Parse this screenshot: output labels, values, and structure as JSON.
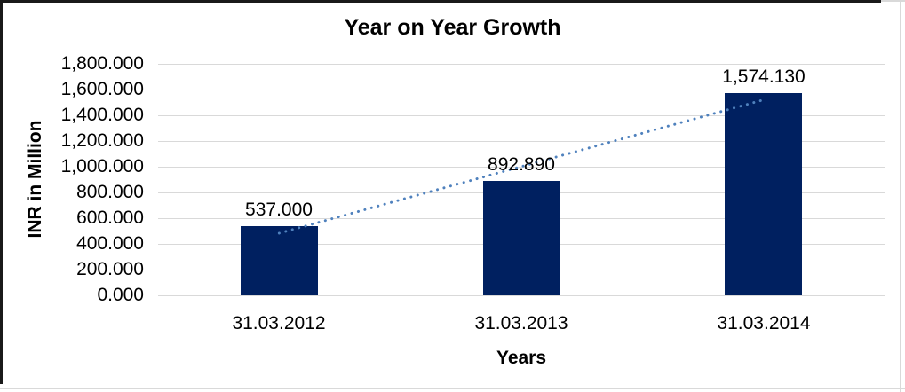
{
  "chart_data": {
    "type": "bar",
    "title": "Year on Year Growth",
    "xlabel": "Years",
    "ylabel": "INR in Million",
    "categories": [
      "31.03.2012",
      "31.03.2013",
      "31.03.2014"
    ],
    "values": [
      537.0,
      892.89,
      1574.13
    ],
    "data_labels": [
      "537.000",
      "892.890",
      "1,574.130"
    ],
    "ylim": [
      0,
      1800
    ],
    "ytick_step": 200,
    "ytick_labels": [
      "0.000",
      "200.000",
      "400.000",
      "600.000",
      "800.000",
      "1,000.000",
      "1,200.000",
      "1,400.000",
      "1,600.000",
      "1,800.000"
    ],
    "grid": true,
    "legend_position": "none",
    "bar_color": "#002060",
    "gridline_color": "#d9d9d9",
    "trendline": {
      "type": "linear",
      "style": "dotted",
      "color": "#4f81bd"
    }
  }
}
